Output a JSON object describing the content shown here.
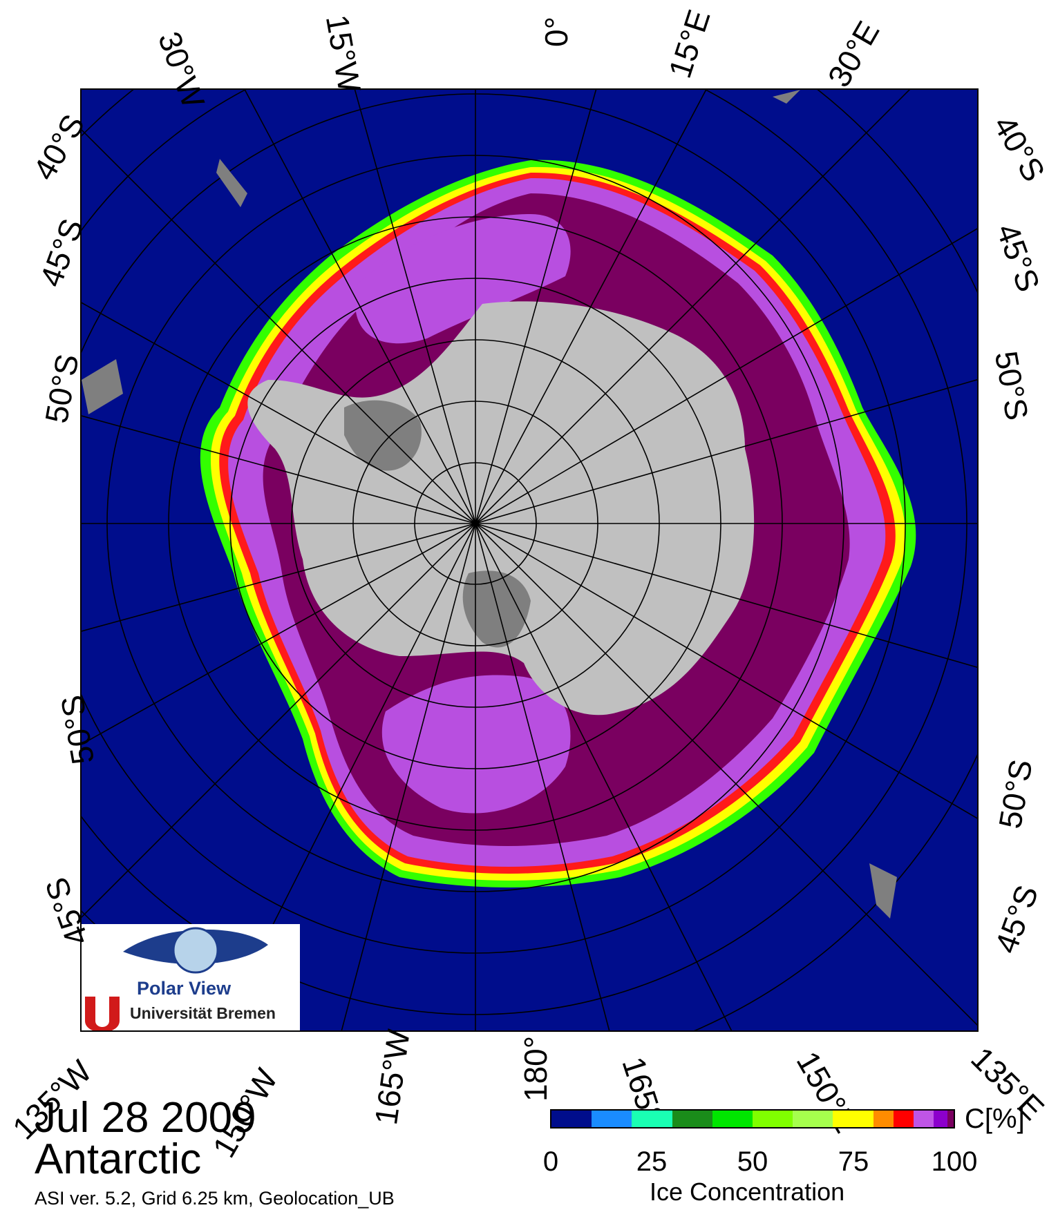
{
  "map": {
    "title_date": "Jul 28 2009",
    "region": "Antarctic",
    "meta_line": "ASI ver. 5.2,  Grid 6.25 km, Geolocation_UB",
    "logo": {
      "name": "Polar View",
      "institution": "Universität Bremen"
    },
    "colors": {
      "ocean": "#000d8c",
      "continent": "#c0c0c0",
      "ice_shelf": "#7f7f7f",
      "high_ice": "#7a0060",
      "mid_ice": "#b84fe0",
      "edge_red": "#ff1a1a",
      "edge_yellow": "#ffff00",
      "edge_green": "#33ff00",
      "grid_line": "#000000"
    },
    "labels": {
      "top": [
        "30°W",
        "15°W",
        "0°",
        "15°E",
        "30°E"
      ],
      "bottom": [
        "135°W",
        "150°W",
        "165°W",
        "180°",
        "165°",
        "150°E",
        "135°E"
      ],
      "left": [
        "40°S",
        "45°S",
        "50°S",
        "50°S",
        "45°S"
      ],
      "right": [
        "40°S",
        "45°S",
        "50°S",
        "50°S",
        "45°S"
      ]
    }
  },
  "colorbar": {
    "title": "Ice Concentration",
    "unit": "C[%]",
    "ticks": [
      "0",
      "25",
      "50",
      "75",
      "100"
    ],
    "colors": [
      "#000d8c",
      "#1a8cff",
      "#1affb3",
      "#1a8c1a",
      "#00e600",
      "#80ff00",
      "#a6ff4d",
      "#ffff00",
      "#ff8c00",
      "#ff0000",
      "#bf55e6",
      "#8c00cc",
      "#7a0060"
    ]
  }
}
